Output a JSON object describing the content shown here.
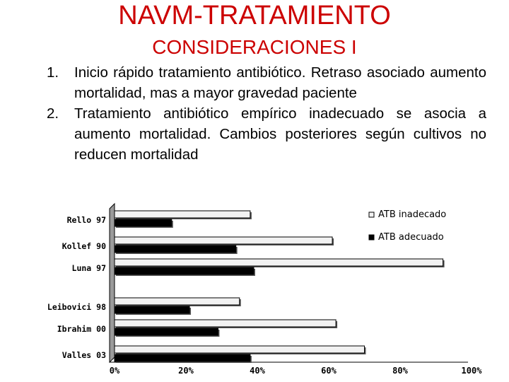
{
  "slide": {
    "title": "NAVM-TRATAMIENTO",
    "subtitle": "CONSIDERACIONES I",
    "points": [
      {
        "num": "1.",
        "text": "Inicio rápido tratamiento antibiótico. Retraso asociado aumento mortalidad, mas a mayor gravedad paciente"
      },
      {
        "num": "2.",
        "text": "Tratamiento antibiótico empírico inadecuado se asocia a aumento mortalidad. Cambios posteriores según cultivos no reducen mortalidad"
      }
    ]
  },
  "chart_data": {
    "type": "bar",
    "orientation": "horizontal",
    "categories": [
      "Rello 97",
      "Kollef 90",
      "Luna 97",
      "Leibovici 98",
      "Ibrahim 00",
      "Valles 03"
    ],
    "series": [
      {
        "name": "ATB inadecado",
        "values": [
          0.38,
          0.61,
          0.92,
          0.35,
          0.62,
          0.7
        ],
        "color": "#f2f2f2"
      },
      {
        "name": "ATB adecuado",
        "values": [
          0.16,
          0.34,
          0.39,
          0.21,
          0.29,
          0.38
        ],
        "color": "#000000"
      }
    ],
    "xlim": [
      0,
      1
    ],
    "xticks": [
      0,
      0.2,
      0.4,
      0.6,
      0.8,
      1.0
    ],
    "xtick_labels": [
      "0%",
      "20%",
      "40%",
      "60%",
      "80%",
      "100%"
    ],
    "legend": "top-right",
    "grid": false
  }
}
